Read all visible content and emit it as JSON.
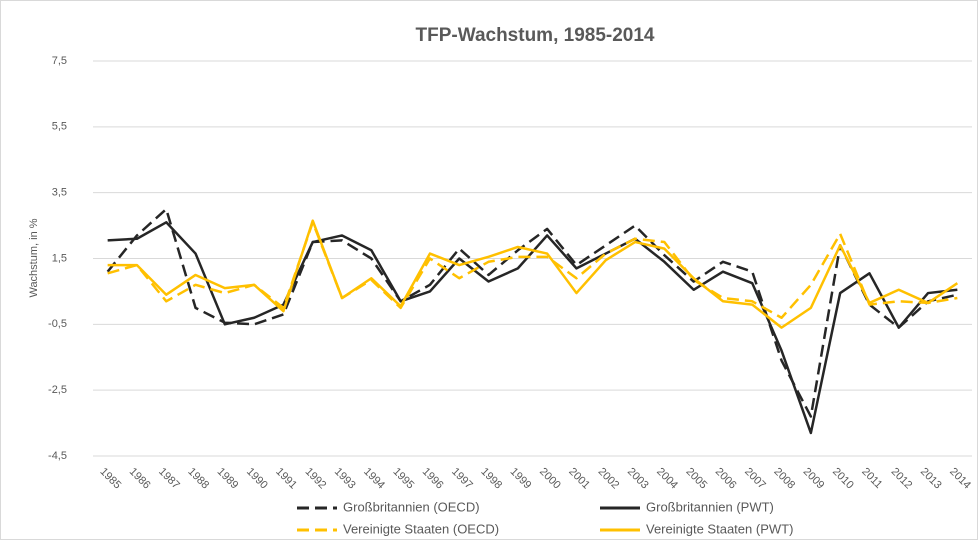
{
  "chart_data": {
    "type": "line",
    "title": "TFP-Wachstum, 1985-2014",
    "y_label": "Wachstum, in %",
    "categories": [
      "1985",
      "1986",
      "1987",
      "1988",
      "1989",
      "1990",
      "1991",
      "1992",
      "1993",
      "1994",
      "1995",
      "1996",
      "1997",
      "1998",
      "1999",
      "2000",
      "2001",
      "2002",
      "2003",
      "2004",
      "2005",
      "2006",
      "2007",
      "2008",
      "2009",
      "2010",
      "2011",
      "2012",
      "2013",
      "2014"
    ],
    "ylim": [
      -4.5,
      7.5
    ],
    "yticks": [
      {
        "value": -4.5,
        "label": "-4,5"
      },
      {
        "value": -2.5,
        "label": "-2,5"
      },
      {
        "value": -0.5,
        "label": "-0,5"
      },
      {
        "value": 1.5,
        "label": "1,5"
      },
      {
        "value": 3.5,
        "label": "3,5"
      },
      {
        "value": 5.5,
        "label": "5,5"
      },
      {
        "value": 7.5,
        "label": "7,5"
      }
    ],
    "grid": true,
    "legend": "bottom",
    "series": [
      {
        "name": "Großbritannien (OECD)",
        "color": "#262626",
        "dash": true,
        "values": [
          1.1,
          2.2,
          3.0,
          0.0,
          -0.45,
          -0.5,
          -0.2,
          2.0,
          2.05,
          1.5,
          0.2,
          0.7,
          1.8,
          1.0,
          1.75,
          2.4,
          1.3,
          1.9,
          2.5,
          1.6,
          0.8,
          1.4,
          1.1,
          -1.6,
          -3.3,
          1.9,
          0.1,
          -0.6,
          0.2,
          0.4
        ]
      },
      {
        "name": "Großbritannien (PWT)",
        "color": "#262626",
        "dash": false,
        "values": [
          2.05,
          2.1,
          2.6,
          1.65,
          -0.5,
          -0.3,
          0.1,
          2.0,
          2.2,
          1.75,
          0.2,
          0.5,
          1.5,
          0.8,
          1.2,
          2.2,
          1.2,
          1.65,
          2.1,
          1.4,
          0.55,
          1.1,
          0.75,
          -1.3,
          -3.8,
          0.45,
          1.05,
          -0.6,
          0.45,
          0.55
        ]
      },
      {
        "name": "Vereinigte Staaten (OECD)",
        "color": "#ffc000",
        "dash": true,
        "values": [
          1.05,
          1.3,
          0.2,
          0.7,
          0.45,
          0.7,
          0.0,
          2.6,
          0.3,
          0.85,
          0.0,
          1.5,
          0.9,
          1.4,
          1.55,
          1.55,
          0.9,
          1.65,
          2.1,
          2.0,
          0.85,
          0.3,
          0.2,
          -0.3,
          0.7,
          2.25,
          0.1,
          0.2,
          0.15,
          0.3
        ]
      },
      {
        "name": "Vereinigte Staaten (PWT)",
        "color": "#ffc000",
        "dash": false,
        "values": [
          1.3,
          1.3,
          0.4,
          1.0,
          0.6,
          0.7,
          -0.1,
          2.65,
          0.3,
          0.9,
          0.05,
          1.65,
          1.3,
          1.55,
          1.85,
          1.65,
          0.45,
          1.45,
          2.0,
          1.8,
          0.9,
          0.2,
          0.1,
          -0.6,
          0.0,
          1.9,
          0.15,
          0.55,
          0.15,
          0.75
        ]
      }
    ]
  }
}
